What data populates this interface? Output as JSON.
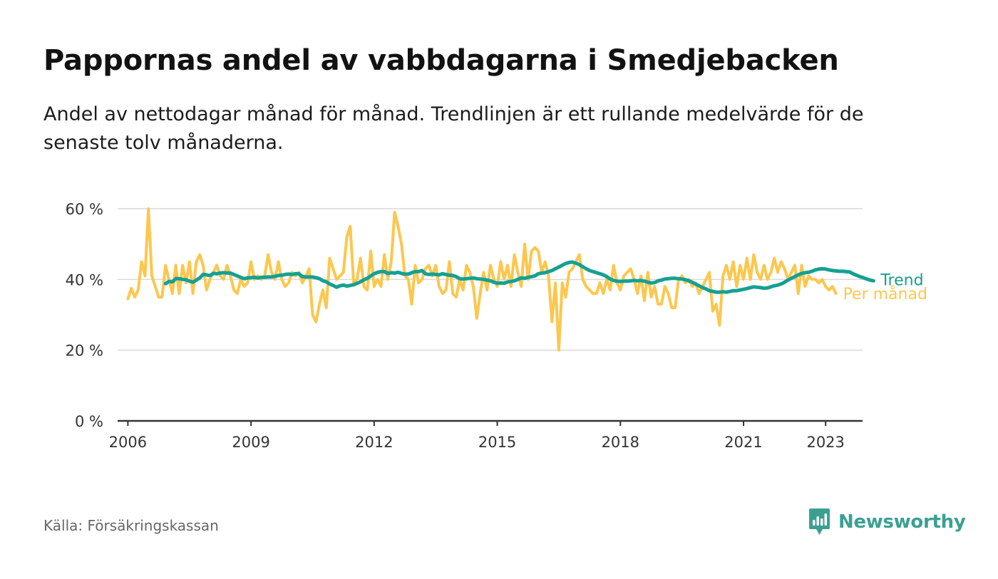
{
  "title": "Pappornas andel av vabbdagarna i Smedjebacken",
  "subtitle": "Andel av nettodagar månad för månad. Trendlinjen är ett rullande medelvärde för de senaste tolv månaderna.",
  "source": "Källa: Försäkringskassan",
  "brand": "Newsworthy",
  "colors": {
    "trend": "#16a092",
    "monthly": "#fcc74e",
    "grid": "#d9d9d9",
    "axis": "#333333",
    "brand": "#3aa192"
  },
  "chart_data": {
    "type": "line",
    "x_unit": "month",
    "start": "2006-01",
    "xlim": [
      2005.75,
      2023.9
    ],
    "ylim": [
      0,
      60
    ],
    "x_ticks": [
      {
        "value": 2006,
        "label": "2006"
      },
      {
        "value": 2009,
        "label": "2009"
      },
      {
        "value": 2012,
        "label": "2012"
      },
      {
        "value": 2015,
        "label": "2015"
      },
      {
        "value": 2018,
        "label": "2018"
      },
      {
        "value": 2021,
        "label": "2021"
      },
      {
        "value": 2023,
        "label": "2023"
      }
    ],
    "y_ticks": [
      {
        "value": 0,
        "label": "0 %"
      },
      {
        "value": 20,
        "label": "20 %"
      },
      {
        "value": 40,
        "label": "40 %"
      },
      {
        "value": 60,
        "label": "60 %"
      }
    ],
    "grid": true,
    "series": [
      {
        "name": "Per månad",
        "color": "#fcc74e",
        "start": "2006-01",
        "values": [
          34.5,
          37.5,
          35,
          37,
          45,
          41,
          60,
          41,
          38,
          35,
          35,
          44,
          40,
          36,
          44,
          36,
          44,
          39,
          45,
          36,
          45,
          47,
          44,
          37,
          40,
          42,
          44,
          41,
          40,
          44,
          41,
          37,
          36,
          40,
          38,
          39,
          45,
          40,
          41,
          40,
          41,
          47,
          42,
          40,
          45,
          40,
          38,
          39,
          42,
          41,
          42,
          39,
          41,
          43,
          30,
          28,
          33,
          37,
          32,
          46,
          43,
          40,
          41,
          42,
          52,
          55,
          39,
          40,
          46,
          38,
          37,
          48,
          38,
          40,
          38,
          47,
          40,
          45,
          59,
          55,
          50,
          41,
          40,
          33,
          44,
          39,
          40,
          43,
          44,
          41,
          44,
          38,
          36,
          37,
          45,
          36,
          35,
          40,
          37,
          44,
          42,
          38,
          29,
          36,
          42,
          37,
          44,
          40,
          38,
          45,
          40,
          44,
          38,
          47,
          42,
          38,
          50,
          40,
          48,
          49,
          48,
          42,
          45,
          41,
          28,
          39,
          20,
          39,
          35,
          42,
          43,
          45,
          47,
          40,
          38,
          37,
          36,
          36,
          39,
          36,
          40,
          37,
          44,
          39,
          37,
          41,
          42,
          43,
          40,
          36,
          41,
          34,
          42,
          35,
          38,
          33,
          33,
          38,
          36,
          32,
          32,
          40,
          41,
          39,
          40,
          38,
          39,
          36,
          38,
          40,
          42,
          31,
          33,
          27,
          41,
          44,
          40,
          45,
          38,
          44,
          40,
          46,
          40,
          47,
          42,
          40,
          44,
          40,
          42,
          46,
          42,
          45,
          43,
          40,
          42,
          44,
          36,
          44,
          38,
          41,
          40,
          40,
          39,
          40,
          38,
          37,
          38,
          36
        ]
      },
      {
        "name": "Trend",
        "color": "#16a092",
        "start": "2006-12",
        "values": [
          38.8,
          39.4,
          39.3,
          40.2,
          40.2,
          40,
          39.9,
          39.5,
          39.2,
          39.8,
          40.4,
          41.4,
          41.3,
          41.1,
          41.7,
          41.6,
          41.8,
          41.9,
          41.8,
          41.8,
          41.4,
          41,
          40.6,
          40.2,
          40.4,
          40.5,
          40.6,
          40.4,
          40.6,
          40.6,
          40.7,
          40.7,
          40.9,
          41.1,
          41.2,
          41.4,
          41.5,
          41.4,
          41.6,
          41.6,
          40.8,
          40.7,
          40.7,
          40.7,
          40.5,
          40.2,
          39.6,
          39.3,
          38.7,
          38.3,
          37.8,
          38.2,
          38.4,
          38.1,
          38.3,
          38.5,
          38.9,
          39.3,
          39.9,
          40.3,
          41,
          41.6,
          42,
          42.2,
          42.2,
          41.7,
          41.9,
          41.8,
          42,
          41.7,
          41.5,
          41.5,
          41.9,
          42.2,
          42.2,
          42.5,
          41.6,
          41.4,
          41.5,
          41.4,
          41.3,
          41.6,
          41.4,
          41.2,
          41.1,
          40.8,
          40.2,
          40.1,
          40.2,
          40.3,
          40.4,
          40.2,
          40.1,
          40,
          39.8,
          39.6,
          39.2,
          38.9,
          39,
          38.9,
          39.3,
          39.4,
          39.6,
          40,
          40.4,
          40.3,
          40.6,
          40.8,
          41,
          41.6,
          41.8,
          41.9,
          42.2,
          42.5,
          43,
          43.5,
          44,
          44.5,
          44.8,
          44.9,
          44.6,
          44.2,
          43.6,
          43,
          42.5,
          42.2,
          41.9,
          41.6,
          41.3,
          40.8,
          40.1,
          39.7,
          39.5,
          39.4,
          39.5,
          39.5,
          39.6,
          39.7,
          39.6,
          39.7,
          39.5,
          39.2,
          39,
          39.1,
          39.6,
          39.8,
          40.1,
          40.2,
          40.3,
          40.3,
          40.2,
          40.1,
          39.9,
          39.6,
          39.2,
          38.7,
          38.2,
          37.7,
          37.3,
          36.8,
          36.6,
          36.4,
          36.4,
          36.5,
          36.4,
          36.6,
          36.8,
          36.8,
          37,
          37.2,
          37.4,
          37.7,
          37.9,
          37.8,
          37.7,
          37.5,
          37.6,
          37.9,
          38.2,
          38.4,
          38.7,
          39.2,
          39.8,
          40.3,
          40.8,
          41.3,
          41.7,
          41.9,
          42,
          42.3,
          42.7,
          42.9,
          43,
          42.9,
          42.7,
          42.5,
          42.4,
          42.3,
          42.3,
          42.2,
          42.1,
          41.6,
          41.2,
          40.8,
          40.5,
          40.1,
          39.8,
          39.6
        ]
      }
    ]
  }
}
